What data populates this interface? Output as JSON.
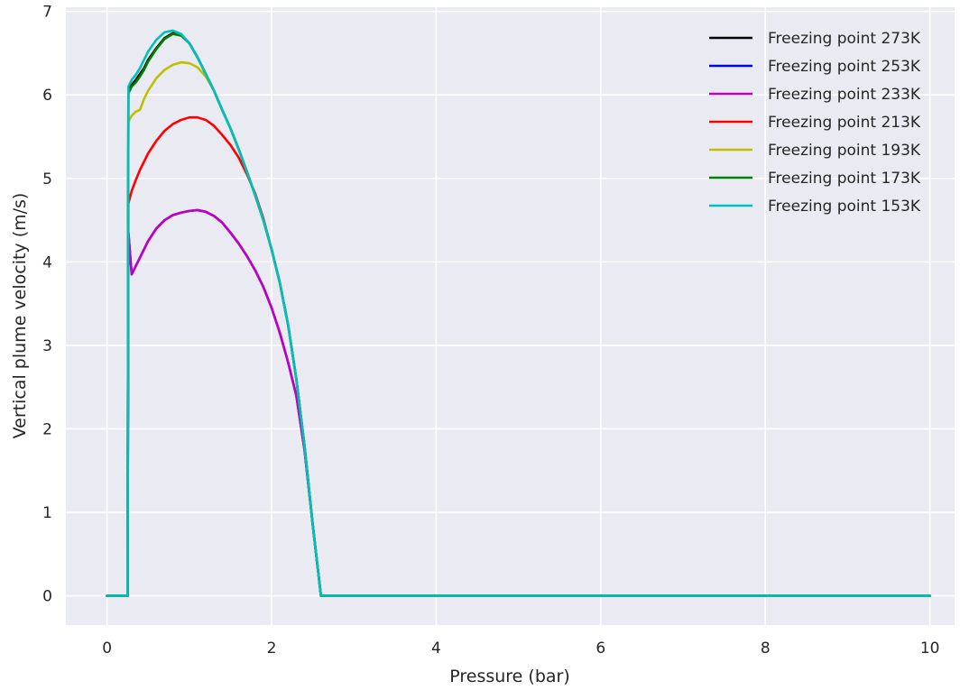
{
  "chart_data": {
    "type": "line",
    "title": "",
    "xlabel": "Pressure (bar)",
    "ylabel": "Vertical plume velocity (m/s)",
    "xlim": [
      -0.5,
      10.3
    ],
    "ylim": [
      -0.35,
      7.05
    ],
    "x_ticks": [
      0,
      2,
      4,
      6,
      8,
      10
    ],
    "y_ticks": [
      0,
      1,
      2,
      3,
      4,
      5,
      6,
      7
    ],
    "grid": true,
    "legend_position": "top-right",
    "background_color": "#EAEAF2",
    "series": [
      {
        "name": "Freezing point 273K",
        "color": "#000000",
        "x": [
          0,
          0.25,
          0.26,
          0.3,
          0.35,
          0.4,
          0.45,
          0.5,
          0.6,
          0.7,
          0.8,
          0.9,
          1.0,
          1.1,
          1.2,
          1.3,
          1.4,
          1.5,
          1.6,
          1.7,
          1.8,
          1.9,
          2.0,
          2.1,
          2.2,
          2.3,
          2.4,
          2.5,
          2.6,
          3,
          4,
          5,
          6,
          7,
          8,
          9,
          10
        ],
        "y": [
          0,
          0,
          6.05,
          6.12,
          6.18,
          6.25,
          6.32,
          6.42,
          6.56,
          6.68,
          6.74,
          6.72,
          6.62,
          6.45,
          6.25,
          6.05,
          5.82,
          5.6,
          5.35,
          5.08,
          4.8,
          4.5,
          4.15,
          3.75,
          3.25,
          2.6,
          1.8,
          0.85,
          0,
          0,
          0,
          0,
          0,
          0,
          0,
          0,
          0
        ]
      },
      {
        "name": "Freezing point 253K",
        "color": "#0000FF",
        "x": [
          0,
          0.25,
          0.26,
          0.3,
          0.35,
          0.4,
          0.45,
          0.5,
          0.6,
          0.7,
          0.8,
          0.9,
          1.0,
          1.1,
          1.2,
          1.3,
          1.4,
          1.5,
          1.6,
          1.7,
          1.8,
          1.9,
          2.0,
          2.1,
          2.2,
          2.3,
          2.4,
          2.5,
          2.6,
          3,
          4,
          5,
          6,
          7,
          8,
          9,
          10
        ],
        "y": [
          0,
          0,
          4.35,
          3.85,
          3.95,
          4.05,
          4.15,
          4.25,
          4.4,
          4.5,
          4.56,
          4.59,
          4.61,
          4.62,
          4.6,
          4.55,
          4.47,
          4.35,
          4.22,
          4.07,
          3.9,
          3.7,
          3.45,
          3.15,
          2.8,
          2.4,
          1.75,
          0.85,
          0,
          0,
          0,
          0,
          0,
          0,
          0,
          0,
          0
        ]
      },
      {
        "name": "Freezing point 233K",
        "color": "#BF00BF",
        "x": [
          0,
          0.25,
          0.26,
          0.3,
          0.35,
          0.4,
          0.45,
          0.5,
          0.6,
          0.7,
          0.8,
          0.9,
          1.0,
          1.1,
          1.2,
          1.3,
          1.4,
          1.5,
          1.6,
          1.7,
          1.8,
          1.9,
          2.0,
          2.1,
          2.2,
          2.3,
          2.4,
          2.5,
          2.6,
          3,
          4,
          5,
          6,
          7,
          8,
          9,
          10
        ],
        "y": [
          0,
          0,
          4.35,
          3.85,
          3.95,
          4.05,
          4.15,
          4.25,
          4.4,
          4.5,
          4.56,
          4.59,
          4.61,
          4.62,
          4.6,
          4.55,
          4.47,
          4.35,
          4.22,
          4.07,
          3.9,
          3.7,
          3.45,
          3.15,
          2.8,
          2.4,
          1.75,
          0.85,
          0,
          0,
          0,
          0,
          0,
          0,
          0,
          0,
          0
        ]
      },
      {
        "name": "Freezing point 213K",
        "color": "#FF0000",
        "x": [
          0,
          0.25,
          0.26,
          0.3,
          0.35,
          0.4,
          0.45,
          0.5,
          0.6,
          0.7,
          0.8,
          0.9,
          1.0,
          1.1,
          1.2,
          1.3,
          1.4,
          1.5,
          1.6,
          1.7,
          1.8,
          1.9,
          2.0,
          2.1,
          2.2,
          2.3,
          2.4,
          2.5,
          2.6,
          3,
          4,
          5,
          6,
          7,
          8,
          9,
          10
        ],
        "y": [
          0,
          0,
          4.7,
          4.85,
          4.98,
          5.1,
          5.2,
          5.3,
          5.45,
          5.57,
          5.65,
          5.7,
          5.73,
          5.73,
          5.7,
          5.63,
          5.52,
          5.4,
          5.25,
          5.05,
          4.82,
          4.52,
          4.15,
          3.75,
          3.25,
          2.6,
          1.8,
          0.85,
          0,
          0,
          0,
          0,
          0,
          0,
          0,
          0,
          0
        ]
      },
      {
        "name": "Freezing point 193K",
        "color": "#BFBF00",
        "x": [
          0,
          0.25,
          0.26,
          0.3,
          0.35,
          0.4,
          0.45,
          0.5,
          0.6,
          0.7,
          0.8,
          0.9,
          1.0,
          1.1,
          1.2,
          1.3,
          1.4,
          1.5,
          1.6,
          1.7,
          1.8,
          1.9,
          2.0,
          2.1,
          2.2,
          2.3,
          2.4,
          2.5,
          2.6,
          3,
          4,
          5,
          6,
          7,
          8,
          9,
          10
        ],
        "y": [
          0,
          0,
          5.68,
          5.75,
          5.8,
          5.82,
          5.95,
          6.05,
          6.2,
          6.3,
          6.36,
          6.39,
          6.38,
          6.33,
          6.22,
          6.05,
          5.82,
          5.6,
          5.35,
          5.08,
          4.8,
          4.5,
          4.15,
          3.75,
          3.25,
          2.6,
          1.8,
          0.85,
          0,
          0,
          0,
          0,
          0,
          0,
          0,
          0,
          0
        ]
      },
      {
        "name": "Freezing point 173K",
        "color": "#007F00",
        "x": [
          0,
          0.25,
          0.26,
          0.3,
          0.35,
          0.4,
          0.45,
          0.5,
          0.6,
          0.7,
          0.8,
          0.9,
          1.0,
          1.1,
          1.2,
          1.3,
          1.4,
          1.5,
          1.6,
          1.7,
          1.8,
          1.9,
          2.0,
          2.1,
          2.2,
          2.3,
          2.4,
          2.5,
          2.6,
          3,
          4,
          5,
          6,
          7,
          8,
          9,
          10
        ],
        "y": [
          0,
          0,
          6.02,
          6.1,
          6.15,
          6.22,
          6.3,
          6.4,
          6.55,
          6.67,
          6.73,
          6.71,
          6.62,
          6.45,
          6.25,
          6.05,
          5.82,
          5.6,
          5.35,
          5.08,
          4.8,
          4.5,
          4.15,
          3.75,
          3.25,
          2.6,
          1.8,
          0.85,
          0,
          0,
          0,
          0,
          0,
          0,
          0,
          0,
          0
        ]
      },
      {
        "name": "Freezing point 153K",
        "color": "#00BFBF",
        "x": [
          0,
          0.25,
          0.26,
          0.3,
          0.35,
          0.4,
          0.45,
          0.5,
          0.6,
          0.7,
          0.8,
          0.9,
          1.0,
          1.1,
          1.2,
          1.3,
          1.4,
          1.5,
          1.6,
          1.7,
          1.8,
          1.9,
          2.0,
          2.1,
          2.2,
          2.3,
          2.4,
          2.5,
          2.6,
          3,
          4,
          5,
          6,
          7,
          8,
          9,
          10
        ],
        "y": [
          0,
          0,
          6.1,
          6.18,
          6.24,
          6.32,
          6.42,
          6.52,
          6.66,
          6.75,
          6.77,
          6.73,
          6.62,
          6.45,
          6.25,
          6.05,
          5.82,
          5.6,
          5.35,
          5.08,
          4.8,
          4.5,
          4.15,
          3.75,
          3.25,
          2.6,
          1.8,
          0.85,
          0,
          0,
          0,
          0,
          0,
          0,
          0,
          0,
          0
        ]
      }
    ]
  }
}
